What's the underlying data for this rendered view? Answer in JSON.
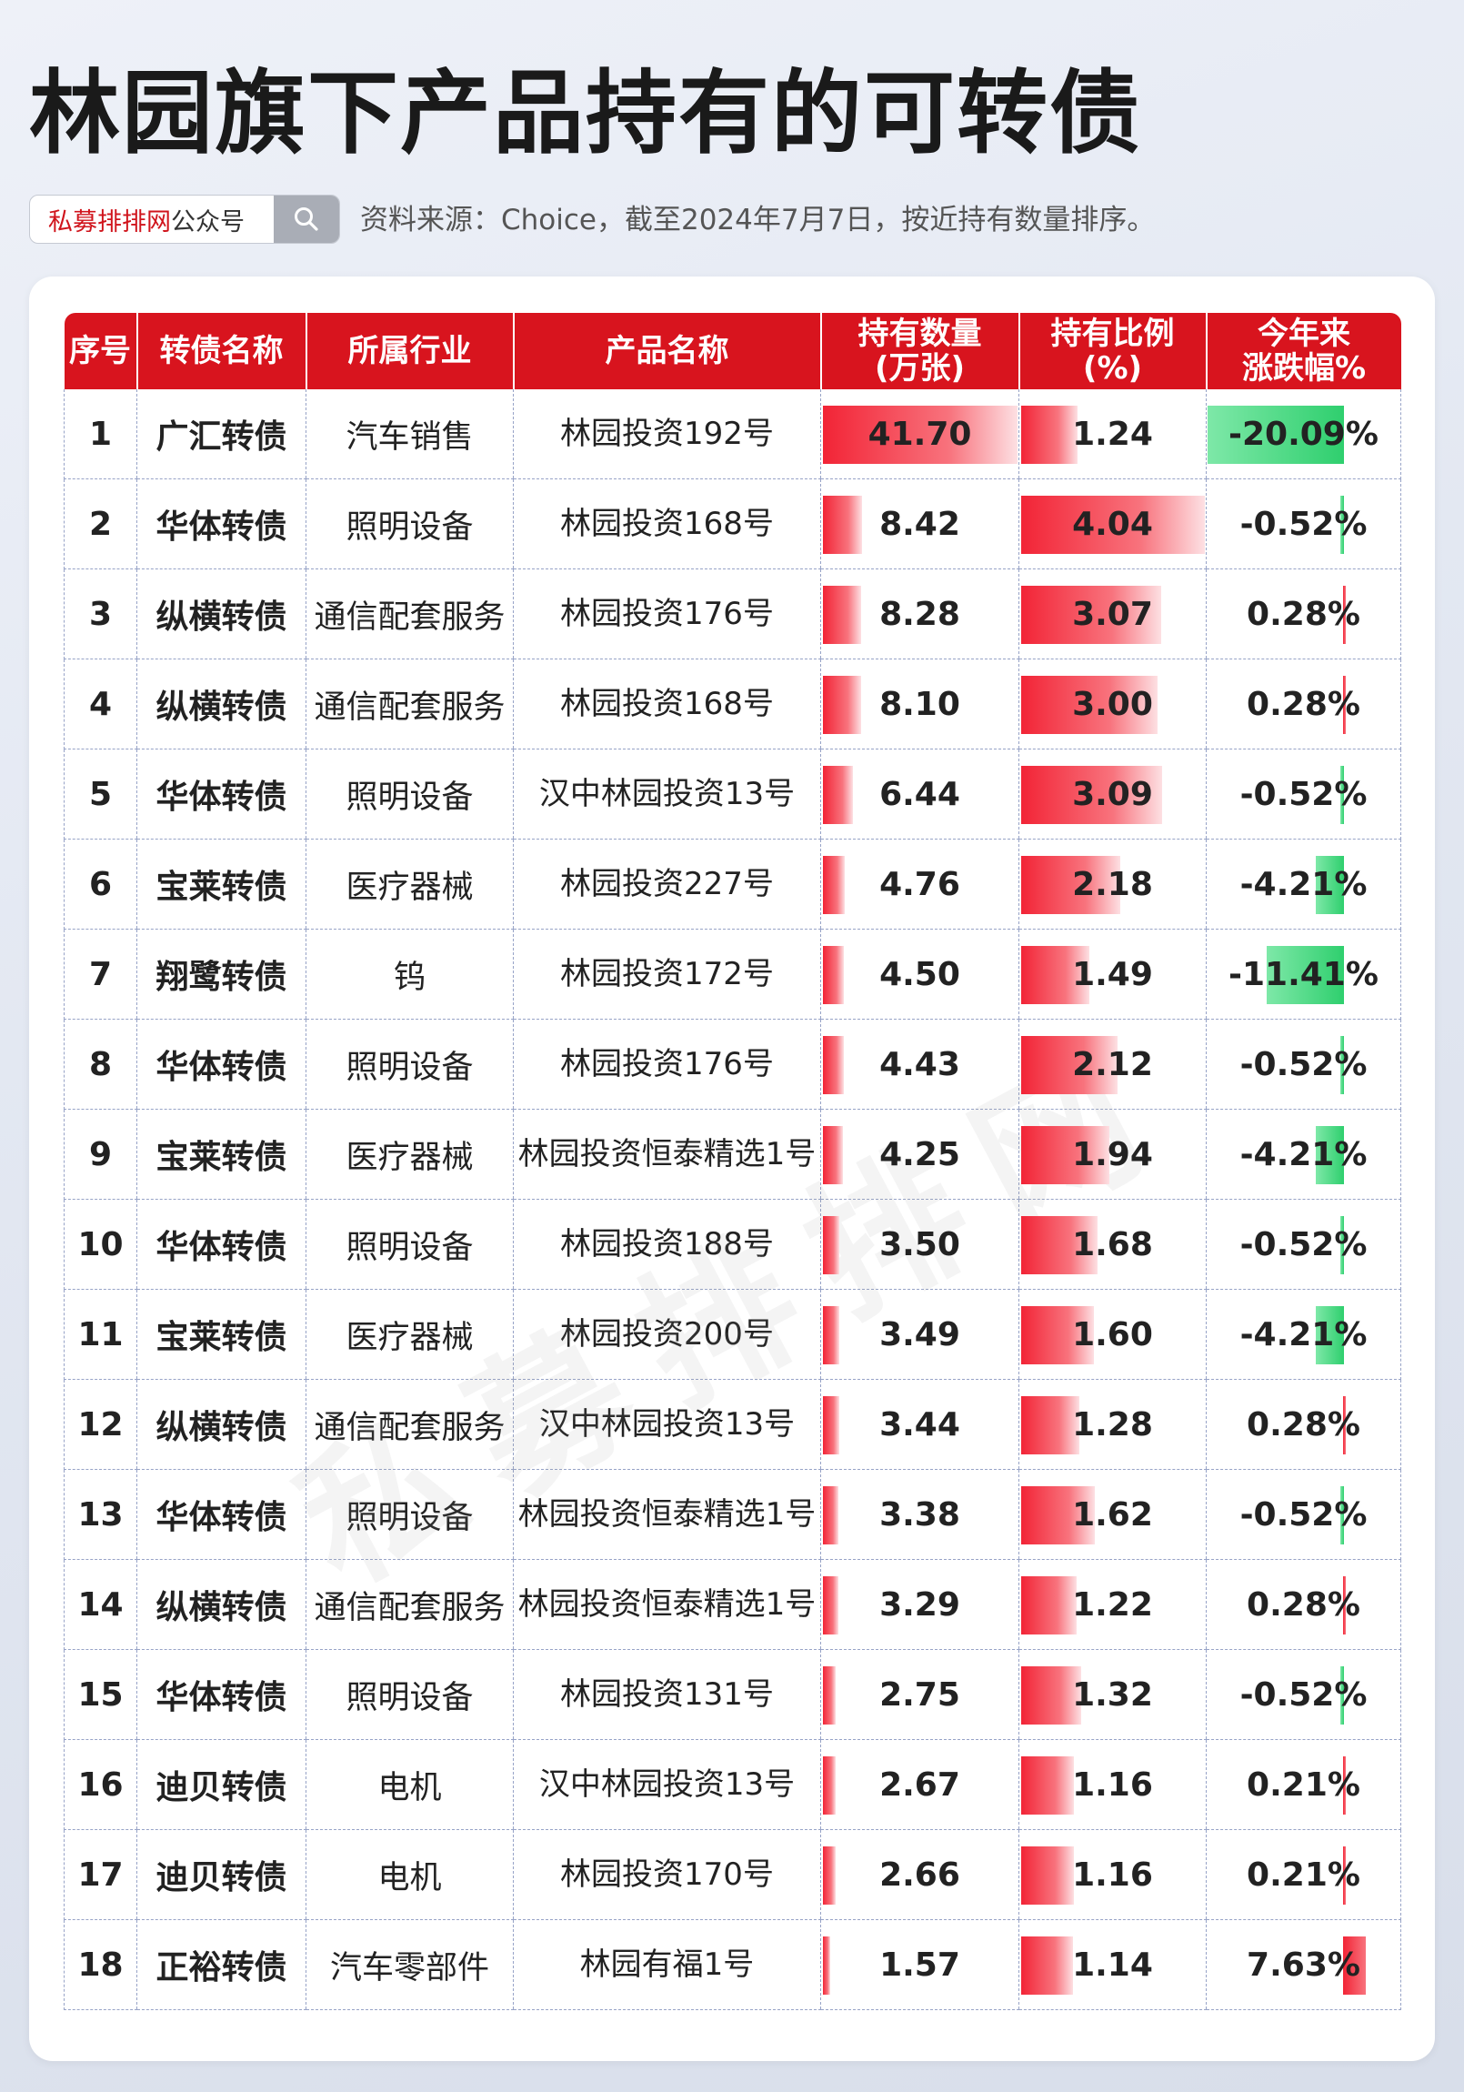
{
  "page": {
    "title": "林园旗下产品持有的可转债",
    "search_brand": "私募排排网",
    "search_suffix": "公众号",
    "source_note": "资料来源：Choice，截至2024年7月7日，按近持有数量排序。",
    "watermark": "私募排排网"
  },
  "colors": {
    "header_bg": "#d8141e",
    "bar_red": "#f22436",
    "bar_green": "#2fcf6e",
    "brand_red": "#d0141c"
  },
  "table": {
    "headers": {
      "index": "序号",
      "bond_name": "转债名称",
      "industry": "所属行业",
      "product": "产品名称",
      "quantity_l1": "持有数量",
      "quantity_l2": "(万张)",
      "ratio_l1": "持有比例",
      "ratio_l2": "(%)",
      "change_l1": "今年来",
      "change_l2": "涨跌幅%"
    },
    "rows": [
      {
        "index": "1",
        "bond_name": "广汇转债",
        "industry": "汽车销售",
        "product": "林园投资192号",
        "quantity": "41.70",
        "quantity_value": 41.7,
        "ratio": "1.24",
        "ratio_value": 1.24,
        "change": "-20.09%",
        "change_value": -20.09
      },
      {
        "index": "2",
        "bond_name": "华体转债",
        "industry": "照明设备",
        "product": "林园投资168号",
        "quantity": "8.42",
        "quantity_value": 8.42,
        "ratio": "4.04",
        "ratio_value": 4.04,
        "change": "-0.52%",
        "change_value": -0.52
      },
      {
        "index": "3",
        "bond_name": "纵横转债",
        "industry": "通信配套服务",
        "product": "林园投资176号",
        "quantity": "8.28",
        "quantity_value": 8.28,
        "ratio": "3.07",
        "ratio_value": 3.07,
        "change": "0.28%",
        "change_value": 0.28
      },
      {
        "index": "4",
        "bond_name": "纵横转债",
        "industry": "通信配套服务",
        "product": "林园投资168号",
        "quantity": "8.10",
        "quantity_value": 8.1,
        "ratio": "3.00",
        "ratio_value": 3.0,
        "change": "0.28%",
        "change_value": 0.28
      },
      {
        "index": "5",
        "bond_name": "华体转债",
        "industry": "照明设备",
        "product": "汉中林园投资13号",
        "quantity": "6.44",
        "quantity_value": 6.44,
        "ratio": "3.09",
        "ratio_value": 3.09,
        "change": "-0.52%",
        "change_value": -0.52
      },
      {
        "index": "6",
        "bond_name": "宝莱转债",
        "industry": "医疗器械",
        "product": "林园投资227号",
        "quantity": "4.76",
        "quantity_value": 4.76,
        "ratio": "2.18",
        "ratio_value": 2.18,
        "change": "-4.21%",
        "change_value": -4.21
      },
      {
        "index": "7",
        "bond_name": "翔鹭转债",
        "industry": "钨",
        "product": "林园投资172号",
        "quantity": "4.50",
        "quantity_value": 4.5,
        "ratio": "1.49",
        "ratio_value": 1.49,
        "change": "-11.41%",
        "change_value": -11.41
      },
      {
        "index": "8",
        "bond_name": "华体转债",
        "industry": "照明设备",
        "product": "林园投资176号",
        "quantity": "4.43",
        "quantity_value": 4.43,
        "ratio": "2.12",
        "ratio_value": 2.12,
        "change": "-0.52%",
        "change_value": -0.52
      },
      {
        "index": "9",
        "bond_name": "宝莱转债",
        "industry": "医疗器械",
        "product": "林园投资恒泰精选1号",
        "quantity": "4.25",
        "quantity_value": 4.25,
        "ratio": "1.94",
        "ratio_value": 1.94,
        "change": "-4.21%",
        "change_value": -4.21
      },
      {
        "index": "10",
        "bond_name": "华体转债",
        "industry": "照明设备",
        "product": "林园投资188号",
        "quantity": "3.50",
        "quantity_value": 3.5,
        "ratio": "1.68",
        "ratio_value": 1.68,
        "change": "-0.52%",
        "change_value": -0.52
      },
      {
        "index": "11",
        "bond_name": "宝莱转债",
        "industry": "医疗器械",
        "product": "林园投资200号",
        "quantity": "3.49",
        "quantity_value": 3.49,
        "ratio": "1.60",
        "ratio_value": 1.6,
        "change": "-4.21%",
        "change_value": -4.21
      },
      {
        "index": "12",
        "bond_name": "纵横转债",
        "industry": "通信配套服务",
        "product": "汉中林园投资13号",
        "quantity": "3.44",
        "quantity_value": 3.44,
        "ratio": "1.28",
        "ratio_value": 1.28,
        "change": "0.28%",
        "change_value": 0.28
      },
      {
        "index": "13",
        "bond_name": "华体转债",
        "industry": "照明设备",
        "product": "林园投资恒泰精选1号",
        "quantity": "3.38",
        "quantity_value": 3.38,
        "ratio": "1.62",
        "ratio_value": 1.62,
        "change": "-0.52%",
        "change_value": -0.52
      },
      {
        "index": "14",
        "bond_name": "纵横转债",
        "industry": "通信配套服务",
        "product": "林园投资恒泰精选1号",
        "quantity": "3.29",
        "quantity_value": 3.29,
        "ratio": "1.22",
        "ratio_value": 1.22,
        "change": "0.28%",
        "change_value": 0.28
      },
      {
        "index": "15",
        "bond_name": "华体转债",
        "industry": "照明设备",
        "product": "林园投资131号",
        "quantity": "2.75",
        "quantity_value": 2.75,
        "ratio": "1.32",
        "ratio_value": 1.32,
        "change": "-0.52%",
        "change_value": -0.52
      },
      {
        "index": "16",
        "bond_name": "迪贝转债",
        "industry": "电机",
        "product": "汉中林园投资13号",
        "quantity": "2.67",
        "quantity_value": 2.67,
        "ratio": "1.16",
        "ratio_value": 1.16,
        "change": "0.21%",
        "change_value": 0.21
      },
      {
        "index": "17",
        "bond_name": "迪贝转债",
        "industry": "电机",
        "product": "林园投资170号",
        "quantity": "2.66",
        "quantity_value": 2.66,
        "ratio": "1.16",
        "ratio_value": 1.16,
        "change": "0.21%",
        "change_value": 0.21
      },
      {
        "index": "18",
        "bond_name": "正裕转债",
        "industry": "汽车零部件",
        "product": "林园有福1号",
        "quantity": "1.57",
        "quantity_value": 1.57,
        "ratio": "1.14",
        "ratio_value": 1.14,
        "change": "7.63%",
        "change_value": 7.63
      }
    ]
  }
}
